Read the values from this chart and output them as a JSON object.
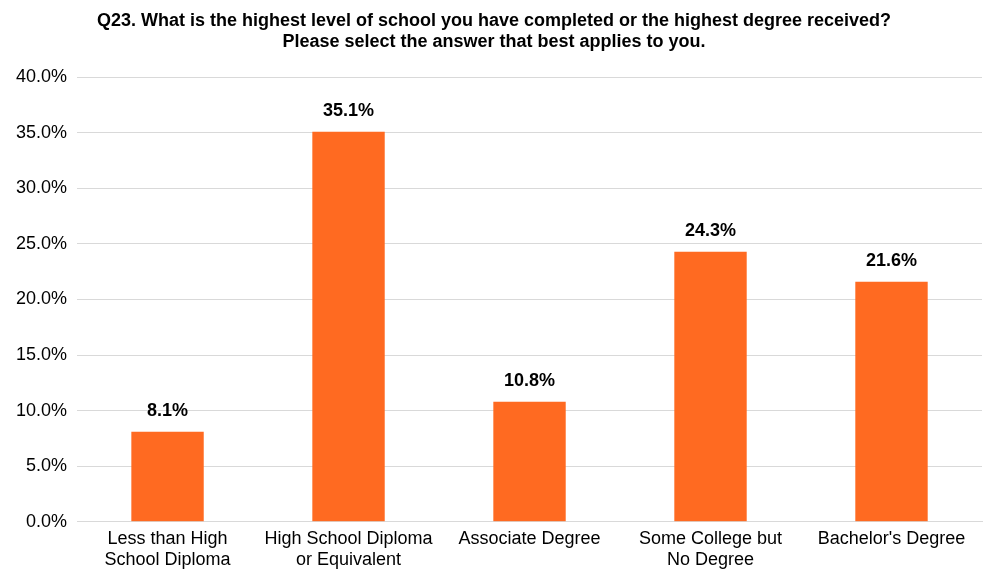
{
  "chart_data": {
    "type": "bar",
    "title": "Q23. What is the highest level of school you have completed or the highest degree received? Please select the answer that best applies to you.",
    "categories": [
      "Less than High School Diploma",
      "High School Diploma or Equivalent",
      "Associate Degree",
      "Some College but No Degree",
      "Bachelor's Degree"
    ],
    "values": [
      8.1,
      35.1,
      10.8,
      24.3,
      21.6
    ],
    "value_labels": [
      "8.1%",
      "35.1%",
      "10.8%",
      "24.3%",
      "21.6%"
    ],
    "color": "#ff6a21",
    "ylim": [
      0,
      40
    ],
    "yticks": [
      {
        "value": 0,
        "label": "0.0%"
      },
      {
        "value": 5,
        "label": "5.0%"
      },
      {
        "value": 10,
        "label": "10.0%"
      },
      {
        "value": 15,
        "label": "15.0%"
      },
      {
        "value": 20,
        "label": "20.0%"
      },
      {
        "value": 25,
        "label": "25.0%"
      },
      {
        "value": 30,
        "label": "30.0%"
      },
      {
        "value": 35,
        "label": "35.0%"
      },
      {
        "value": 40,
        "label": "40.0%"
      }
    ],
    "grid": "y",
    "legend": false
  }
}
